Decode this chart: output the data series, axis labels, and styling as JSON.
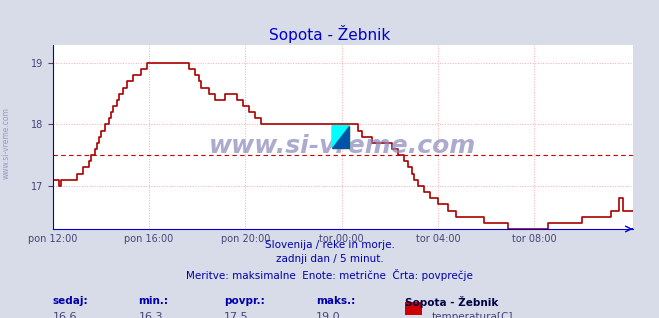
{
  "title": "Sopota - Žebnik",
  "title_color": "#0000cc",
  "bg_color": "#d8dce8",
  "plot_bg_color": "#ffffff",
  "grid_color": "#ffaaaa",
  "grid_style": "dotted",
  "line_color": "#aa0000",
  "line_width": 1.2,
  "avg_line_color": "#cc0000",
  "avg_line_style": "dashed",
  "avg_value": 17.5,
  "ylim": [
    16.3,
    19.3
  ],
  "yticks": [
    17,
    18,
    19
  ],
  "x_labels": [
    "pon 12:00",
    "pon 16:00",
    "pon 20:00",
    "tor 00:00",
    "tor 04:00",
    "tor 08:00"
  ],
  "x_label_color": "#444477",
  "axis_color": "#0000cc",
  "text1": "Slovenija / reke in morje.",
  "text2": "zadnji dan / 5 minut.",
  "text3": "Meritve: maksimalne  Enote: metrične  Črta: povprečje",
  "text_color": "#0000aa",
  "footer_label_color": "#0000aa",
  "footer_value_color": "#444477",
  "footer_bold_color": "#000044",
  "sedaj_label": "sedaj:",
  "sedaj_val": "16,6",
  "min_label": "min.:",
  "min_val": "16,3",
  "povpr_label": "povpr.:",
  "povpr_val": "17,5",
  "maks_label": "maks.:",
  "maks_val": "19,0",
  "station_name": "Sopota - Žebnik",
  "legend_label": "temperatura[C]",
  "legend_color": "#cc0000",
  "watermark": "www.si-vreme.com",
  "watermark_color": "#8888bb",
  "num_points": 288,
  "values": [
    17.1,
    17.1,
    17.1,
    17.0,
    17.1,
    17.1,
    17.1,
    17.1,
    17.1,
    17.1,
    17.1,
    17.1,
    17.2,
    17.2,
    17.2,
    17.3,
    17.3,
    17.3,
    17.4,
    17.5,
    17.5,
    17.6,
    17.7,
    17.8,
    17.9,
    17.9,
    18.0,
    18.0,
    18.1,
    18.2,
    18.3,
    18.3,
    18.4,
    18.5,
    18.5,
    18.6,
    18.6,
    18.7,
    18.7,
    18.7,
    18.8,
    18.8,
    18.8,
    18.8,
    18.9,
    18.9,
    18.9,
    19.0,
    19.0,
    19.0,
    19.0,
    19.0,
    19.0,
    19.0,
    19.0,
    19.0,
    19.0,
    19.0,
    19.0,
    19.0,
    19.0,
    19.0,
    19.0,
    19.0,
    19.0,
    19.0,
    19.0,
    19.0,
    18.9,
    18.9,
    18.9,
    18.8,
    18.8,
    18.7,
    18.6,
    18.6,
    18.6,
    18.6,
    18.5,
    18.5,
    18.5,
    18.4,
    18.4,
    18.4,
    18.4,
    18.4,
    18.5,
    18.5,
    18.5,
    18.5,
    18.5,
    18.5,
    18.4,
    18.4,
    18.4,
    18.3,
    18.3,
    18.3,
    18.2,
    18.2,
    18.2,
    18.1,
    18.1,
    18.1,
    18.0,
    18.0,
    18.0,
    18.0,
    18.0,
    18.0,
    18.0,
    18.0,
    18.0,
    18.0,
    18.0,
    18.0,
    18.0,
    18.0,
    18.0,
    18.0,
    18.0,
    18.0,
    18.0,
    18.0,
    18.0,
    18.0,
    18.0,
    18.0,
    18.0,
    18.0,
    18.0,
    18.0,
    18.0,
    18.0,
    18.0,
    18.0,
    18.0,
    18.0,
    18.0,
    18.0,
    18.0,
    18.0,
    18.0,
    18.0,
    18.0,
    18.0,
    18.0,
    18.0,
    18.0,
    18.0,
    18.0,
    18.0,
    17.9,
    17.9,
    17.8,
    17.8,
    17.8,
    17.8,
    17.8,
    17.7,
    17.7,
    17.7,
    17.7,
    17.7,
    17.7,
    17.7,
    17.7,
    17.7,
    17.7,
    17.6,
    17.6,
    17.6,
    17.5,
    17.5,
    17.5,
    17.4,
    17.4,
    17.3,
    17.3,
    17.2,
    17.1,
    17.1,
    17.0,
    17.0,
    17.0,
    16.9,
    16.9,
    16.9,
    16.8,
    16.8,
    16.8,
    16.8,
    16.7,
    16.7,
    16.7,
    16.7,
    16.7,
    16.6,
    16.6,
    16.6,
    16.6,
    16.5,
    16.5,
    16.5,
    16.5,
    16.5,
    16.5,
    16.5,
    16.5,
    16.5,
    16.5,
    16.5,
    16.5,
    16.5,
    16.5,
    16.4,
    16.4,
    16.4,
    16.4,
    16.4,
    16.4,
    16.4,
    16.4,
    16.4,
    16.4,
    16.4,
    16.4,
    16.3,
    16.3,
    16.3,
    16.3,
    16.3,
    16.3,
    16.3,
    16.3,
    16.3,
    16.3,
    16.3,
    16.3,
    16.3,
    16.3,
    16.3,
    16.3,
    16.3,
    16.3,
    16.3,
    16.3,
    16.4,
    16.4,
    16.4,
    16.4,
    16.4,
    16.4,
    16.4,
    16.4,
    16.4,
    16.4,
    16.4,
    16.4,
    16.4,
    16.4,
    16.4,
    16.4,
    16.4,
    16.5,
    16.5,
    16.5,
    16.5,
    16.5,
    16.5,
    16.5,
    16.5,
    16.5,
    16.5,
    16.5,
    16.5,
    16.5,
    16.5,
    16.6,
    16.6,
    16.6,
    16.6,
    16.8,
    16.8,
    16.6,
    16.6,
    16.6,
    16.6,
    16.6,
    16.6
  ]
}
